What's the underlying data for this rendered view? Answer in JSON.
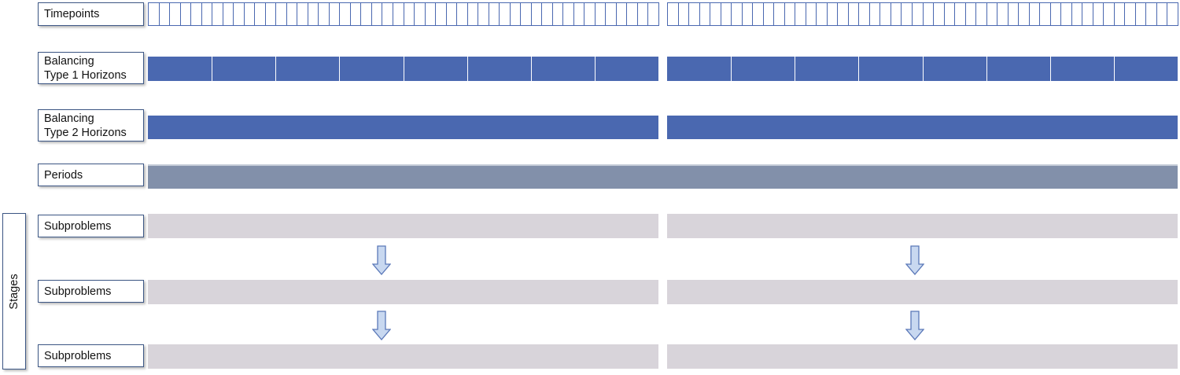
{
  "labels": {
    "timepoints": "Timepoints",
    "balancing_type1": "Balancing\nType 1 Horizons",
    "balancing_type2": "Balancing\nType 2 Horizons",
    "periods": "Periods",
    "subproblems_1": "Subproblems",
    "subproblems_2": "Subproblems",
    "subproblems_3": "Subproblems",
    "stages": "Stages"
  },
  "counts": {
    "timepoints_per_half": 48,
    "type1_horizons_per_half": 8,
    "type2_horizons_per_half": 1,
    "periods": 1,
    "subproblems_per_stage": 2,
    "stages": 3
  },
  "colors": {
    "horizon_fill": "#4a68b0",
    "timepoint_border": "#4a68b0",
    "period_fill": "#8290aa",
    "subproblem_fill": "#d8d4da",
    "arrow_fill": "#c8d8f0",
    "arrow_stroke": "#5a78b8"
  },
  "icons": [
    "down-arrow-icon"
  ]
}
